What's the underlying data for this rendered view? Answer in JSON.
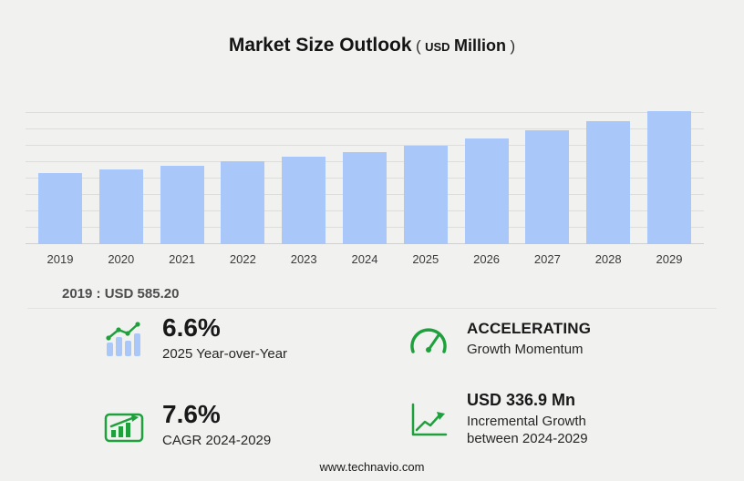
{
  "header": {
    "title": "Market Size Outlook",
    "open_paren": "(",
    "currency": "USD",
    "unit": "Million",
    "close_paren": ")"
  },
  "chart_data": {
    "type": "bar",
    "title": "Market Size Outlook",
    "unit": "USD Million",
    "categories": [
      "2019",
      "2020",
      "2021",
      "2022",
      "2023",
      "2024",
      "2025",
      "2026",
      "2027",
      "2028",
      "2029"
    ],
    "values": [
      585.2,
      616.6,
      650.0,
      685.2,
      722.2,
      760.9,
      811.1,
      874.8,
      943.5,
      1017.6,
      1097.8
    ],
    "labeled_values": {
      "2019": 585.2
    },
    "ylim": [
      0,
      1130
    ],
    "grid": true,
    "legend": "none",
    "bar_color": "#a9c7f8"
  },
  "base_note": {
    "text": "2019 : USD  585.20"
  },
  "stats": {
    "yoy": {
      "value": "6.6%",
      "label": "2025 Year-over-Year"
    },
    "momentum": {
      "value": "ACCELERATING",
      "label": "Growth Momentum"
    },
    "cagr": {
      "value": "7.6%",
      "label": "CAGR 2024-2029"
    },
    "incremental": {
      "value": "USD 336.9 Mn",
      "label_line1": "Incremental Growth",
      "label_line2": "between 2024-2029"
    }
  },
  "footer": {
    "website": "www.technavio.com"
  },
  "colors": {
    "bar": "#a9c7f8",
    "accent_green": "#1ea13c",
    "background": "#f1f1ef"
  }
}
